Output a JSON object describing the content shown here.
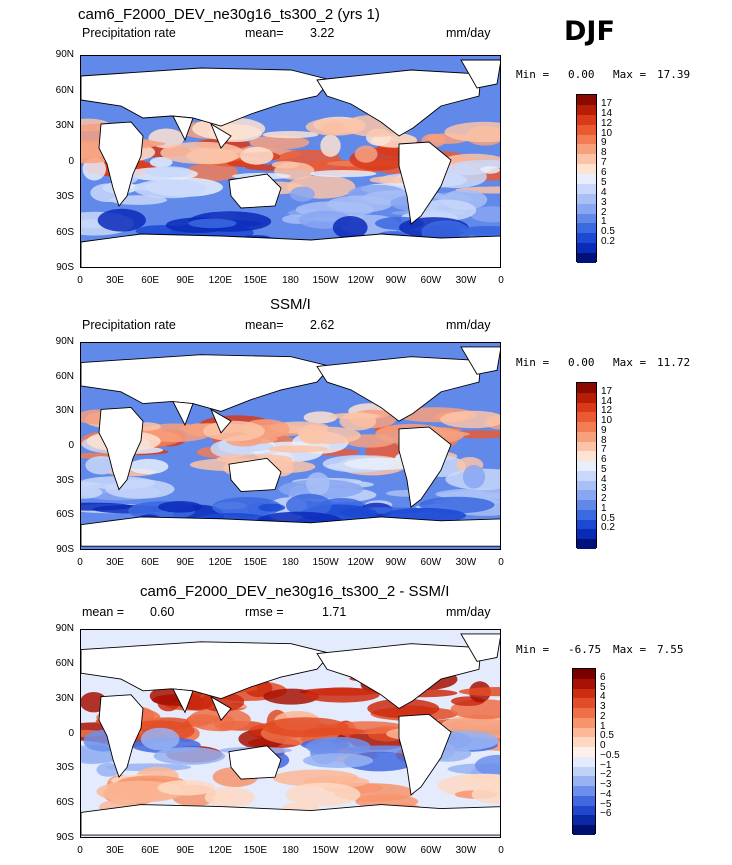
{
  "season": "DJF",
  "panels": [
    {
      "title": "cam6_F2000_DEV_ne30g16_ts300_2 (yrs 1)",
      "left_label": "Precipitation rate",
      "stat1_label": "mean=",
      "stat1_value": "3.22",
      "units": "mm/day",
      "min_label": "Min =",
      "min_value": "0.00",
      "max_label": "Max =",
      "max_value": "17.39",
      "colorbar_labels": [
        "17",
        "14",
        "12",
        "10",
        "9",
        "8",
        "7",
        "6",
        "5",
        "4",
        "3",
        "2",
        "1",
        "0.5",
        "0.2"
      ],
      "colorbar_colors": [
        "#8a0a00",
        "#b81d08",
        "#d83a1a",
        "#ec5a32",
        "#f27d55",
        "#f7a07e",
        "#fbc4a8",
        "#fde3d2",
        "#e8eefc",
        "#c9d8fa",
        "#a9c0f6",
        "#88a6f1",
        "#6189ea",
        "#3b69e0",
        "#1b49d2",
        "#0a2ab8",
        "#00127a"
      ],
      "diverging": false
    },
    {
      "title": "SSM/I",
      "left_label": "Precipitation rate",
      "stat1_label": "mean=",
      "stat1_value": "2.62",
      "units": "mm/day",
      "min_label": "Min =",
      "min_value": "0.00",
      "max_label": "Max =",
      "max_value": "11.72",
      "colorbar_labels": [
        "17",
        "14",
        "12",
        "10",
        "9",
        "8",
        "7",
        "6",
        "5",
        "4",
        "3",
        "2",
        "1",
        "0.5",
        "0.2"
      ],
      "colorbar_colors": [
        "#8a0a00",
        "#b81d08",
        "#d83a1a",
        "#ec5a32",
        "#f27d55",
        "#f7a07e",
        "#fbc4a8",
        "#fde3d2",
        "#e8eefc",
        "#c9d8fa",
        "#a9c0f6",
        "#88a6f1",
        "#6189ea",
        "#3b69e0",
        "#1b49d2",
        "#0a2ab8",
        "#00127a"
      ],
      "diverging": false
    },
    {
      "title": "cam6_F2000_DEV_ne30g16_ts300_2 - SSM/I",
      "left_label": "",
      "stat1_label": "mean =",
      "stat1_value": "0.60",
      "stat2_label": "rmse =",
      "stat2_value": "1.71",
      "units": "mm/day",
      "min_label": "Min =",
      "min_value": "-6.75",
      "max_label": "Max =",
      "max_value": "7.55",
      "colorbar_labels": [
        "6",
        "5",
        "4",
        "3",
        "2",
        "1",
        "0.5",
        "0",
        "−0.5",
        "−1",
        "−2",
        "−3",
        "−4",
        "−5",
        "−6"
      ],
      "colorbar_colors": [
        "#7a0000",
        "#a81204",
        "#cc2c10",
        "#e24c26",
        "#ef7048",
        "#f7946c",
        "#fbb796",
        "#fdd9c4",
        "#fdf0e8",
        "#e4ebfc",
        "#c0d2f8",
        "#98b3f2",
        "#6d8feb",
        "#4268e0",
        "#2046cc",
        "#0a28a6",
        "#001070"
      ],
      "diverging": true
    }
  ],
  "lat_ticks": [
    "90N",
    "60N",
    "30N",
    "0",
    "30S",
    "60S",
    "90S"
  ],
  "lon_ticks": [
    "0",
    "30E",
    "60E",
    "90E",
    "120E",
    "150E",
    "180",
    "150W",
    "120W",
    "90W",
    "60W",
    "30W",
    "0"
  ]
}
